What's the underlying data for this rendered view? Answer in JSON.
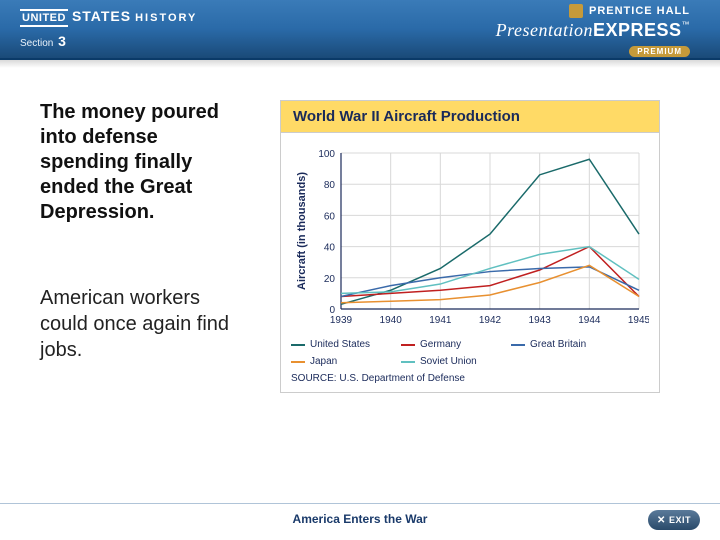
{
  "header": {
    "brand_united": "UNITED",
    "brand_states": "STATES",
    "brand_history": "HISTORY",
    "section_label": "Section",
    "section_number": "3",
    "publisher": "PRENTICE HALL",
    "product_presentation": "Presentation",
    "product_express": "EXPRESS",
    "product_tm": "™",
    "product_tier": "PREMIUM"
  },
  "body": {
    "paragraph1": "The money poured into defense spending finally ended the Great Depression.",
    "paragraph2": "American workers could once again find jobs."
  },
  "chart": {
    "type": "line",
    "title": "World War II Aircraft Production",
    "xlabel": "",
    "ylabel": "Aircraft (in thousands)",
    "label_fontsize": 11,
    "title_fontsize": 15,
    "years": [
      1939,
      1940,
      1941,
      1942,
      1943,
      1944,
      1945
    ],
    "ylim": [
      0,
      100
    ],
    "ytick_step": 20,
    "xlim": [
      1939,
      1945
    ],
    "background_color": "#ffffff",
    "grid_color": "#d8d8d8",
    "axis_color": "#1a2a5a",
    "line_width": 1.5,
    "series": [
      {
        "name": "United States",
        "color": "#1a6a6a",
        "values": [
          3,
          12,
          26,
          48,
          86,
          96,
          48
        ]
      },
      {
        "name": "Germany",
        "color": "#c02020",
        "values": [
          8,
          10,
          12,
          15,
          25,
          40,
          8
        ]
      },
      {
        "name": "Great Britain",
        "color": "#3a6aaa",
        "values": [
          8,
          15,
          20,
          24,
          26,
          27,
          12
        ]
      },
      {
        "name": "Japan",
        "color": "#e89030",
        "values": [
          4,
          5,
          6,
          9,
          17,
          28,
          8
        ]
      },
      {
        "name": "Soviet Union",
        "color": "#60c0c0",
        "values": [
          10,
          11,
          16,
          26,
          35,
          40,
          19
        ]
      }
    ],
    "source_label": "SOURCE:",
    "source_text": "U.S. Department of Defense"
  },
  "footer": {
    "caption": "America Enters the War",
    "exit_label": "EXIT"
  }
}
